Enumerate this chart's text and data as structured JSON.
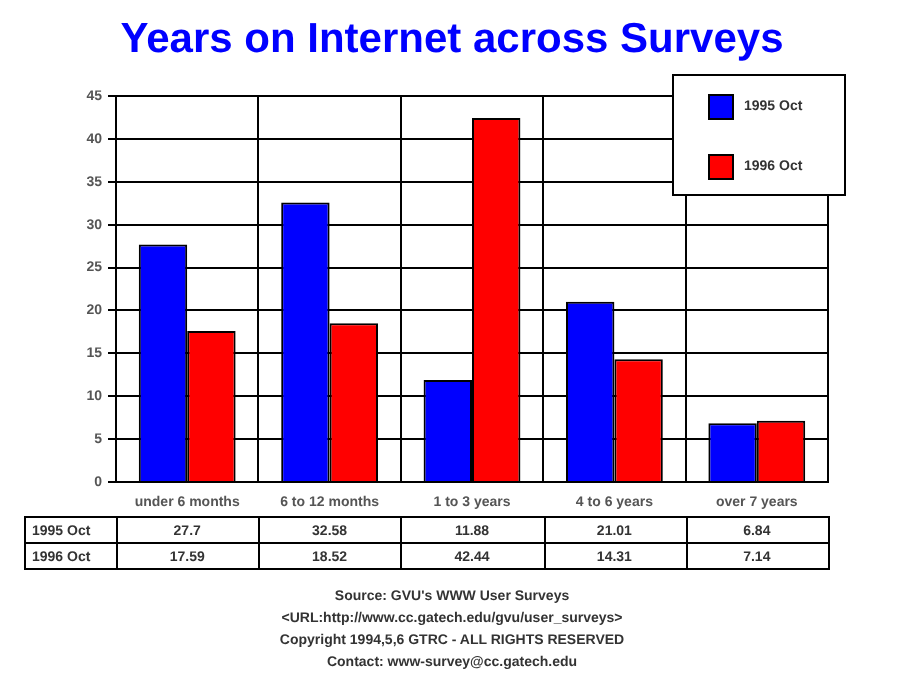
{
  "chart_data": {
    "type": "bar",
    "title": "Years on Internet across Surveys",
    "categories": [
      "under 6 months",
      "6 to 12 months",
      "1 to 3 years",
      "4 to 6 years",
      "over 7 years"
    ],
    "series": [
      {
        "name": "1995 Oct",
        "color": "#0000ff",
        "values": [
          27.7,
          32.58,
          11.88,
          21.01,
          6.84
        ]
      },
      {
        "name": "1996 Oct",
        "color": "#ff0000",
        "values": [
          17.59,
          18.52,
          42.44,
          14.31,
          7.14
        ]
      }
    ],
    "ylim": [
      0,
      45
    ],
    "yticks": [
      0,
      5,
      10,
      15,
      20,
      25,
      30,
      35,
      40,
      45
    ],
    "grid": true,
    "legend": "top right",
    "data_labels": true,
    "annotations": [
      "Source: GVU's WWW User Surveys",
      "<URL:http://www.cc.gatech.edu/gvu/user_surveys>",
      "Copyright 1994,5,6 GTRC - ALL RIGHTS RESERVED",
      "Contact: www-survey@cc.gatech.edu"
    ]
  }
}
